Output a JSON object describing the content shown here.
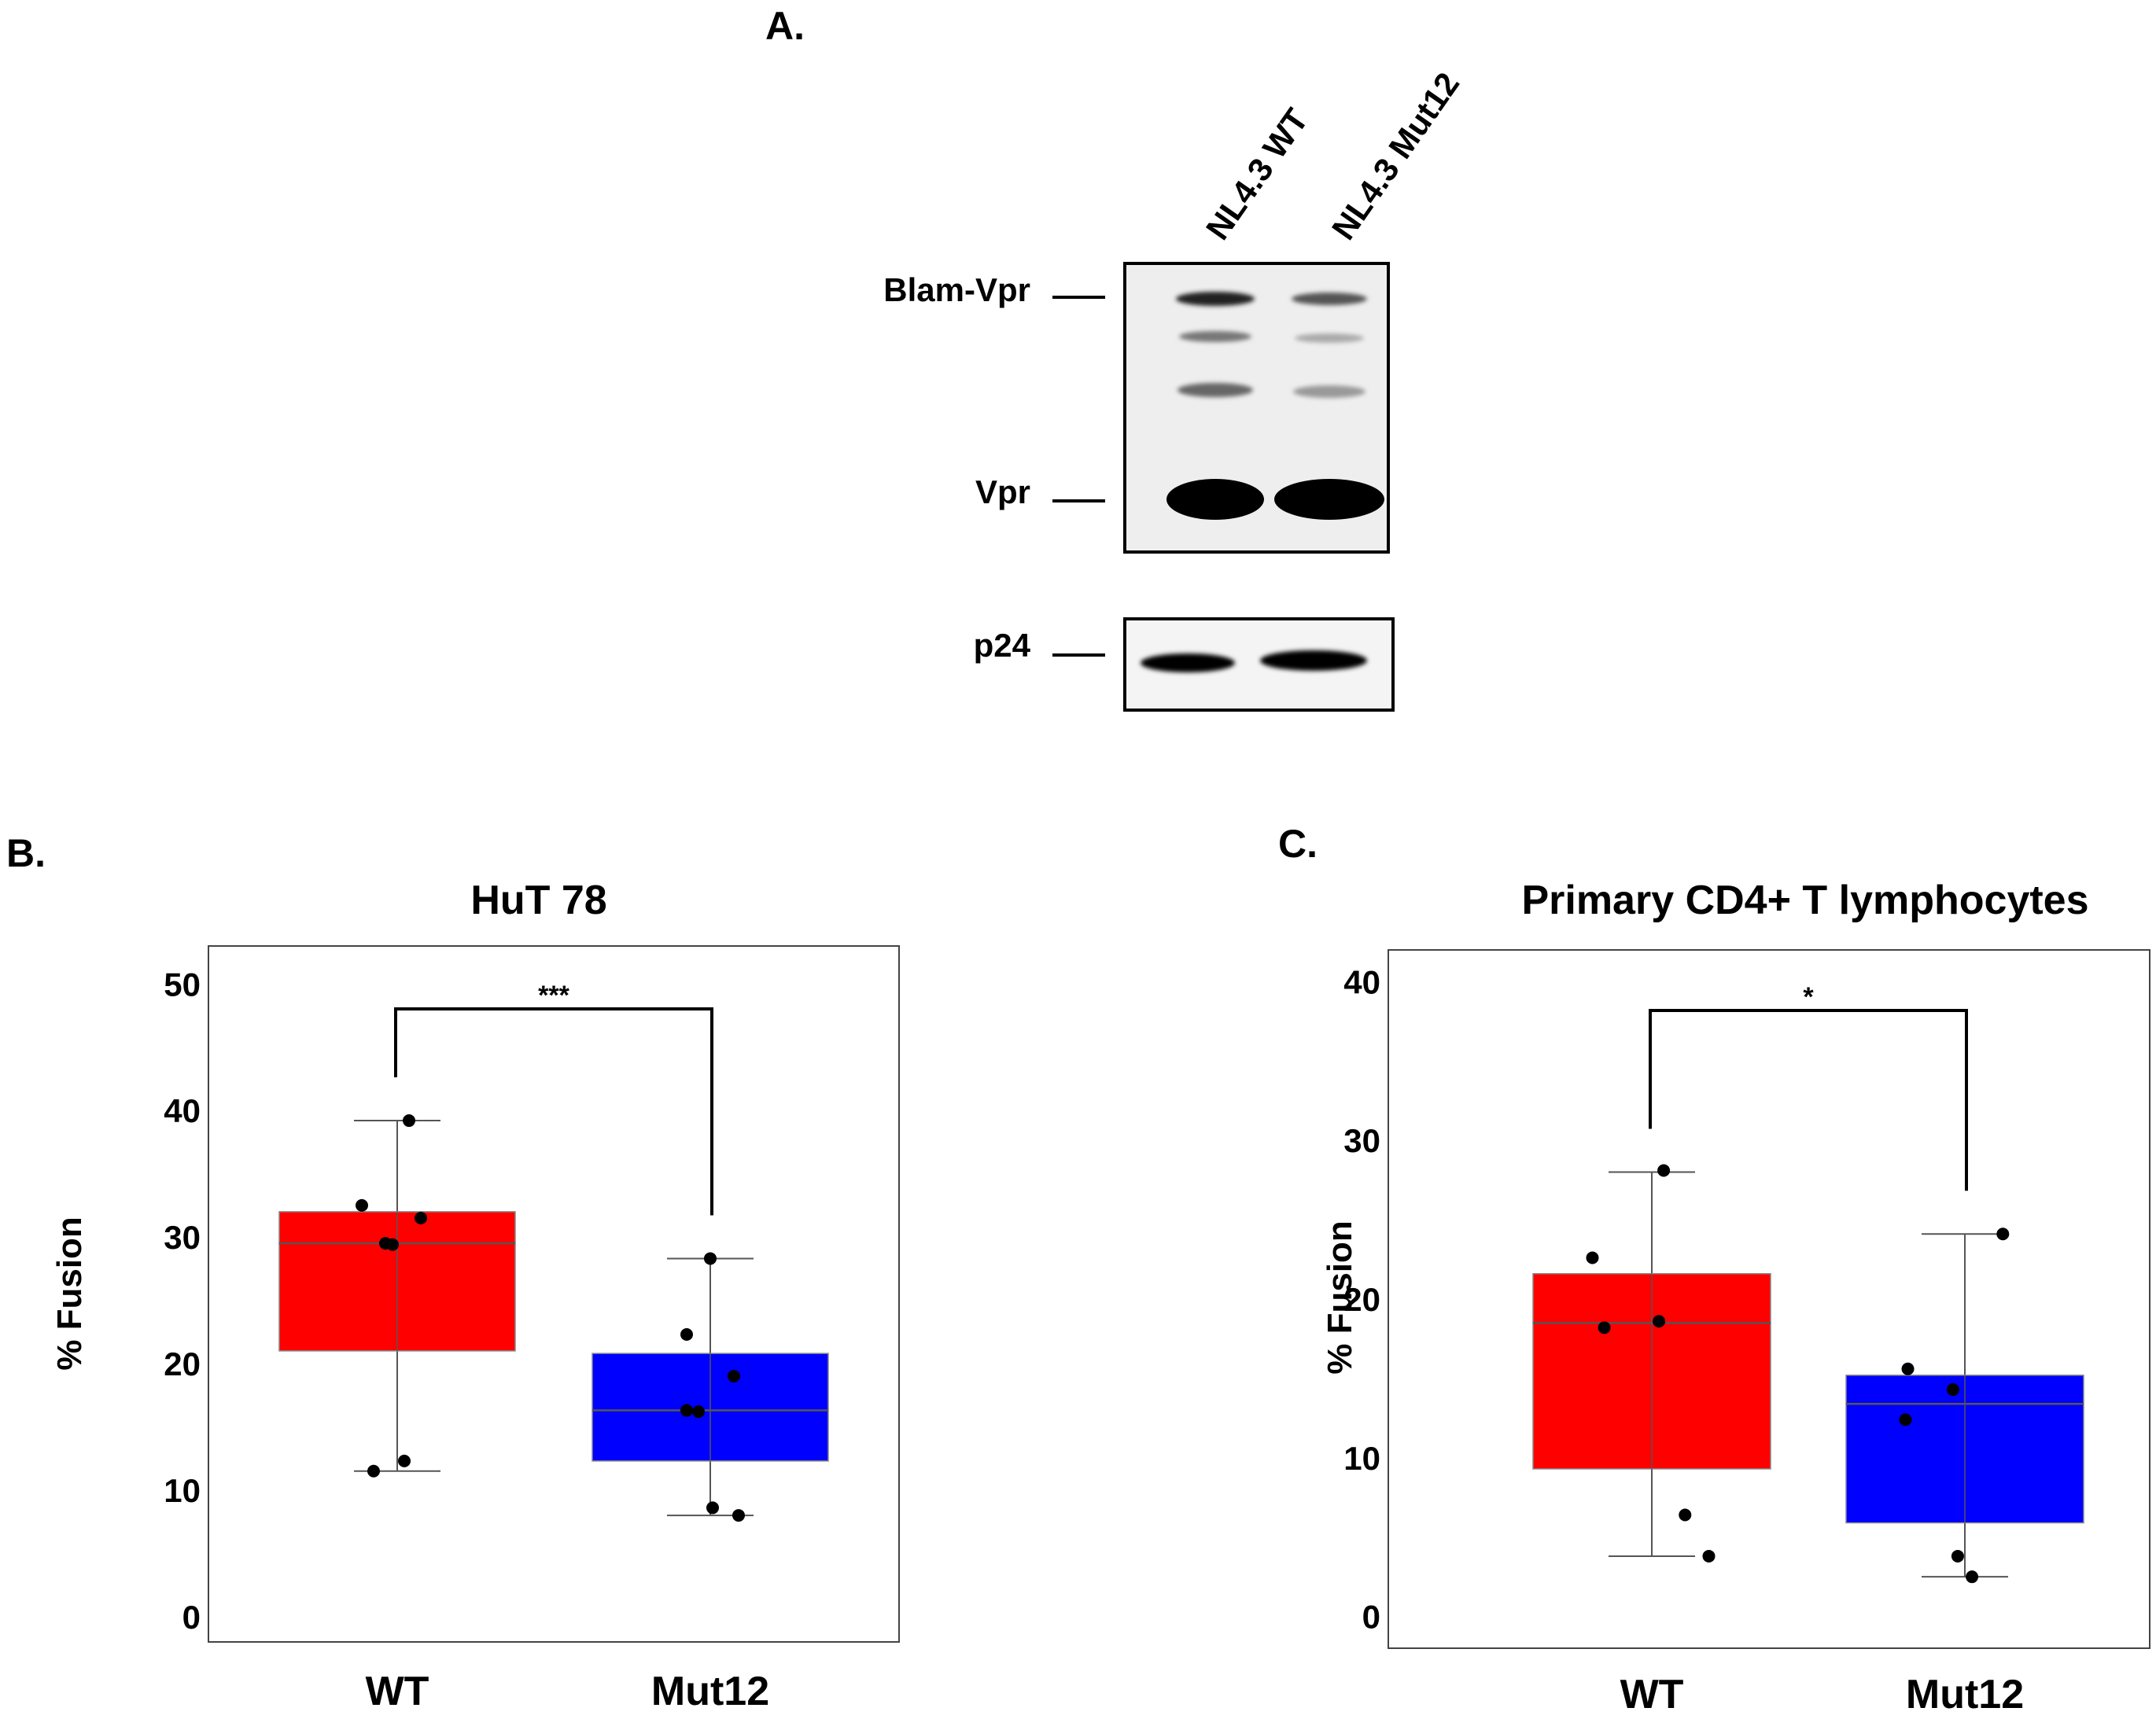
{
  "panel_a": {
    "label": "A.",
    "lanes": [
      "NL4.3 WT",
      "NL4.3 Mut12"
    ],
    "bands": [
      "Blam-Vpr",
      "Vpr",
      "p24"
    ]
  },
  "chart_data": [
    {
      "panel": "B.",
      "type": "box",
      "title": "HuT 78",
      "xlabel": "",
      "ylabel": "% Fusion",
      "ylim": [
        -2,
        53
      ],
      "yticks": [
        0,
        10,
        20,
        30,
        40,
        50
      ],
      "categories": [
        "WT",
        "Mut12"
      ],
      "colors": [
        "#ff0000",
        "#0000ff"
      ],
      "boxes": [
        {
          "category": "WT",
          "whisker_low": 11.5,
          "q1": 21.0,
          "median": 29.5,
          "q3": 32.0,
          "whisker_high": 39.2,
          "points": [
            39.2,
            32.5,
            31.5,
            29.5,
            29.4,
            12.3,
            11.5
          ]
        },
        {
          "category": "Mut12",
          "whisker_low": 8.0,
          "q1": 12.3,
          "median": 16.3,
          "q3": 20.8,
          "whisker_high": 28.3,
          "points": [
            28.3,
            22.3,
            19.0,
            16.3,
            16.2,
            8.6,
            8.0
          ]
        }
      ],
      "significance": {
        "from": "WT",
        "to": "Mut12",
        "label": "***"
      }
    },
    {
      "panel": "C.",
      "type": "box",
      "title": "Primary CD4+ T lymphocytes",
      "xlabel": "",
      "ylabel": "% Fusion",
      "ylim": [
        -2,
        42
      ],
      "yticks": [
        0,
        10,
        20,
        30,
        40
      ],
      "categories": [
        "WT",
        "Mut12"
      ],
      "colors": [
        "#ff0000",
        "#0000ff"
      ],
      "boxes": [
        {
          "category": "WT",
          "whisker_low": 3.8,
          "q1": 9.3,
          "median": 18.5,
          "q3": 21.6,
          "whisker_high": 28.0,
          "points": [
            28.1,
            22.6,
            18.6,
            18.2,
            6.4,
            3.8
          ]
        },
        {
          "category": "Mut12",
          "whisker_low": 2.5,
          "q1": 5.9,
          "median": 13.4,
          "q3": 15.2,
          "whisker_high": 24.1,
          "points": [
            24.1,
            15.6,
            14.3,
            12.4,
            3.8,
            2.5
          ]
        }
      ],
      "significance": {
        "from": "WT",
        "to": "Mut12",
        "label": "*"
      }
    }
  ]
}
